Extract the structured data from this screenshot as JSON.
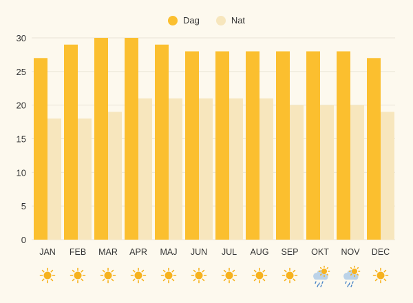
{
  "colors": {
    "background": "#fdf9ee",
    "dag": "#fbbf2f",
    "nat": "#f7e6bd",
    "grid": "#e9e4d6",
    "text": "#333333",
    "sun": "#f6b21f",
    "cloud": "#bcd3e8",
    "rain": "#4a86c8"
  },
  "legend": {
    "dag_label": "Dag",
    "nat_label": "Nat"
  },
  "chart_data": {
    "type": "bar",
    "title": "",
    "xlabel": "",
    "ylabel": "",
    "ylim": [
      0,
      30
    ],
    "yticks": [
      0,
      5,
      10,
      15,
      20,
      25,
      30
    ],
    "categories": [
      "JAN",
      "FEB",
      "MAR",
      "APR",
      "MAJ",
      "JUN",
      "JUL",
      "AUG",
      "SEP",
      "OKT",
      "NOV",
      "DEC"
    ],
    "series": [
      {
        "name": "Dag",
        "values": [
          27,
          29,
          30,
          30,
          29,
          28,
          28,
          28,
          28,
          28,
          28,
          27
        ]
      },
      {
        "name": "Nat",
        "values": [
          18,
          18,
          19,
          21,
          21,
          21,
          21,
          21,
          20,
          20,
          20,
          19
        ]
      }
    ],
    "weather_icons": [
      "sun-icon",
      "sun-icon",
      "sun-icon",
      "sun-icon",
      "sun-icon",
      "sun-icon",
      "sun-icon",
      "sun-icon",
      "sun-icon",
      "rain-sun-icon",
      "rain-sun-icon",
      "sun-icon"
    ]
  }
}
